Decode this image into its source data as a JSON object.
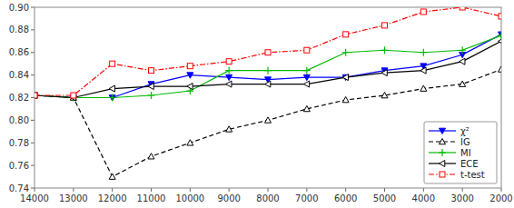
{
  "chart_data": {
    "type": "line",
    "x": [
      14000,
      13000,
      12000,
      11000,
      10000,
      9000,
      8000,
      7000,
      6000,
      5000,
      4000,
      3000,
      2000
    ],
    "xlim": [
      14000,
      2000
    ],
    "xticks": [
      14000,
      13000,
      12000,
      11000,
      10000,
      9000,
      8000,
      7000,
      6000,
      5000,
      4000,
      3000,
      2000
    ],
    "ylim": [
      0.74,
      0.9
    ],
    "yticks": [
      0.74,
      0.76,
      0.78,
      {
        "value": 0.8,
        "label": "0.80"
      },
      0.82,
      0.84,
      0.86,
      0.88,
      {
        "value": 0.9,
        "label": "0.90"
      }
    ],
    "series": [
      {
        "name": "χ²",
        "color": "#0000ff",
        "marker": "triangle-down",
        "line_style": "solid",
        "values": [
          0.822,
          0.82,
          0.82,
          0.832,
          0.84,
          0.838,
          0.836,
          0.838,
          0.838,
          0.844,
          0.848,
          0.858,
          0.876
        ]
      },
      {
        "name": "IG",
        "color": "#000000",
        "marker": "triangle-up",
        "line_style": "dashed",
        "values": [
          0.822,
          0.82,
          0.75,
          0.768,
          0.78,
          0.792,
          0.8,
          0.81,
          0.818,
          0.822,
          0.828,
          0.832,
          0.845
        ]
      },
      {
        "name": "MI",
        "color": "#00bb00",
        "marker": "plus",
        "line_style": "solid",
        "values": [
          0.822,
          0.82,
          0.82,
          0.822,
          0.826,
          0.844,
          0.844,
          0.844,
          0.86,
          0.862,
          0.86,
          0.862,
          0.875
        ]
      },
      {
        "name": "ECE",
        "color": "#000000",
        "marker": "triangle-left",
        "line_style": "solid",
        "values": [
          0.822,
          0.82,
          0.828,
          0.83,
          0.83,
          0.832,
          0.832,
          0.832,
          0.838,
          0.842,
          0.844,
          0.852,
          0.87
        ]
      },
      {
        "name": "t-test",
        "color": "#ff0000",
        "marker": "square",
        "line_style": "dashdot",
        "values": [
          0.822,
          0.822,
          0.85,
          0.844,
          0.848,
          0.852,
          0.86,
          0.862,
          0.876,
          0.884,
          0.896,
          0.9,
          0.892
        ]
      }
    ],
    "legend": "lower right",
    "grid": false
  }
}
